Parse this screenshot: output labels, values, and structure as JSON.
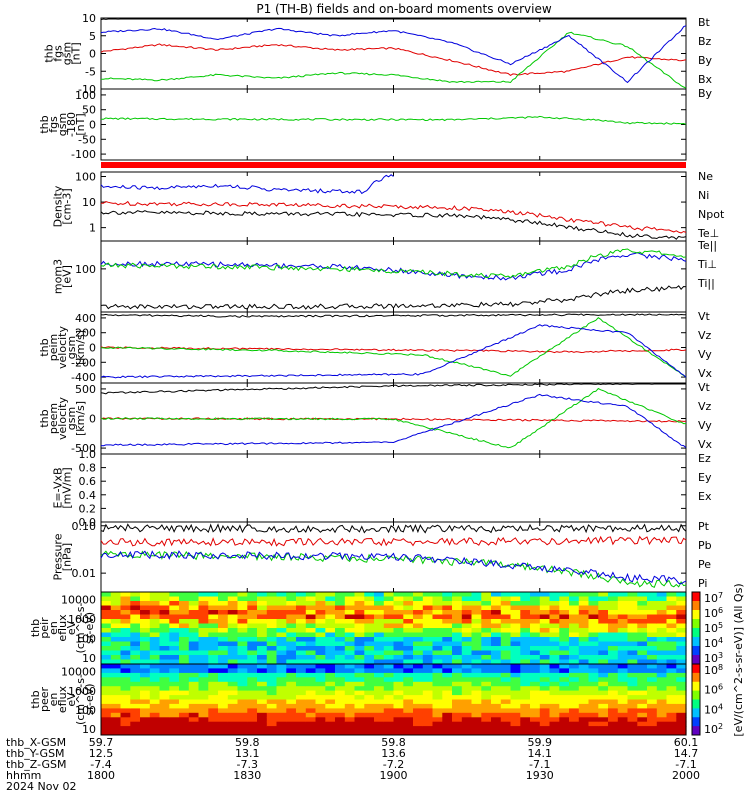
{
  "title": "P1 (TH-B) fields and on-board moments overview",
  "colors": {
    "black": "#000000",
    "red": "#e00000",
    "green": "#00c800",
    "blue": "#0000dd",
    "flagbar": "#ff0000"
  },
  "chart_data": [
    {
      "type": "line",
      "panel": "fgs-gsm",
      "ylabel": [
        "thb",
        "fgs",
        "gsm",
        "[nT]"
      ],
      "ylim": [
        -10,
        10
      ],
      "yticks": [
        "10",
        "5",
        "0",
        "-5",
        "-10"
      ],
      "tick_values": [
        10,
        5,
        0,
        -5,
        -10
      ],
      "series": [
        {
          "name": "Bt",
          "color": "#000000",
          "x": [
            0,
            0.1,
            0.2,
            0.3,
            0.4,
            0.5,
            0.6,
            0.7,
            0.8,
            0.9,
            1
          ],
          "y": [
            9.8,
            10,
            10.2,
            10.4,
            10.3,
            10.5,
            10.4,
            10.6,
            10.7,
            10.9,
            10.8
          ]
        },
        {
          "name": "Bz",
          "color": "#e00000",
          "x": [
            0,
            0.1,
            0.2,
            0.3,
            0.4,
            0.5,
            0.6,
            0.7,
            0.8,
            0.9,
            1
          ],
          "y": [
            0.5,
            2.5,
            1,
            2.5,
            1,
            1.5,
            -2,
            -6,
            -5,
            -1,
            -2
          ]
        },
        {
          "name": "By",
          "color": "#00c800",
          "x": [
            0,
            0.1,
            0.2,
            0.3,
            0.4,
            0.5,
            0.6,
            0.7,
            0.8,
            0.9,
            1
          ],
          "y": [
            -7,
            -7.5,
            -6,
            -7,
            -5.5,
            -6,
            -8,
            -8,
            6,
            2,
            -10
          ]
        },
        {
          "name": "Bx",
          "color": "#0000dd",
          "x": [
            0,
            0.1,
            0.2,
            0.3,
            0.4,
            0.5,
            0.6,
            0.7,
            0.8,
            0.9,
            1
          ],
          "y": [
            6,
            7,
            4,
            7,
            5,
            6.5,
            3,
            -3,
            5,
            -8,
            8
          ]
        }
      ]
    },
    {
      "type": "line",
      "panel": "fgs-gsm-180",
      "ylabel": [
        "thb",
        "fgs",
        "gsm",
        "-180",
        "[nT]"
      ],
      "ylim": [
        -120,
        120
      ],
      "yticks": [
        "100",
        "50",
        "0",
        "-50",
        "-100"
      ],
      "tick_values": [
        100,
        50,
        0,
        -50,
        -100
      ],
      "series": [
        {
          "name": "By",
          "color": "#00c800",
          "x": [
            0,
            0.2,
            0.4,
            0.6,
            0.75,
            0.85,
            0.9,
            1
          ],
          "y": [
            20,
            18,
            17,
            16,
            25,
            15,
            5,
            3
          ]
        }
      ]
    },
    {
      "type": "line",
      "panel": "density",
      "log": true,
      "ylabel": [
        "Density",
        "[cm-3]"
      ],
      "ylim": [
        0.3,
        150
      ],
      "yticks": [
        "100",
        "10",
        "1"
      ],
      "tick_values": [
        100,
        10,
        1
      ],
      "series": [
        {
          "name": "Ne",
          "color": "#e00000",
          "x": [
            0,
            0.3,
            0.6,
            0.7,
            0.8,
            0.9,
            1
          ],
          "y": [
            9,
            8,
            6,
            4,
            2,
            1,
            0.7
          ]
        },
        {
          "name": "Ni",
          "color": "#000000",
          "x": [
            0,
            0.3,
            0.6,
            0.7,
            0.8,
            0.9,
            1
          ],
          "y": [
            4,
            3.5,
            3,
            2,
            1,
            0.5,
            0.4
          ]
        },
        {
          "name": "Npot",
          "color": "#0000dd",
          "x": [
            0,
            0.1,
            0.2,
            0.3,
            0.45,
            0.5
          ],
          "y": [
            40,
            35,
            45,
            30,
            25,
            120
          ]
        },
        {
          "name": "Te⊥",
          "color": "#e00000"
        }
      ]
    },
    {
      "type": "line",
      "panel": "moments",
      "log": true,
      "ylabel": [
        "mom3",
        "[eV]"
      ],
      "ylim": [
        4,
        800
      ],
      "yticks": [
        "100"
      ],
      "tick_values": [
        100
      ],
      "series": [
        {
          "name": "Te||",
          "color": "#000000",
          "x": [
            0,
            0.4,
            0.7,
            0.8,
            0.9,
            1
          ],
          "y": [
            6,
            6,
            7,
            10,
            20,
            25
          ]
        },
        {
          "name": "Ti⊥",
          "color": "#0000dd",
          "x": [
            0,
            0.2,
            0.4,
            0.6,
            0.7,
            0.8,
            0.9,
            1
          ],
          "y": [
            150,
            140,
            120,
            60,
            50,
            90,
            300,
            200
          ]
        },
        {
          "name": "Ti||",
          "color": "#00c800",
          "x": [
            0,
            0.2,
            0.4,
            0.6,
            0.7,
            0.8,
            0.9,
            1
          ],
          "y": [
            130,
            120,
            100,
            70,
            55,
            120,
            400,
            250
          ]
        }
      ]
    },
    {
      "type": "line",
      "panel": "peim-velocity",
      "ylabel": [
        "thb",
        "peim",
        "velocity",
        "gsm",
        "[km/s]"
      ],
      "ylim": [
        -480,
        480
      ],
      "yticks": [
        "400",
        "200",
        "0",
        "-200",
        "-400"
      ],
      "tick_values": [
        400,
        200,
        0,
        -200,
        -400
      ],
      "series": [
        {
          "name": "Vt",
          "color": "#000000",
          "x": [
            0,
            0.25,
            0.5,
            0.75,
            1
          ],
          "y": [
            440,
            420,
            430,
            440,
            450
          ]
        },
        {
          "name": "Vz",
          "color": "#e00000",
          "x": [
            0,
            0.3,
            0.6,
            0.8,
            1
          ],
          "y": [
            0,
            -20,
            -40,
            -60,
            -30
          ]
        },
        {
          "name": "Vy",
          "color": "#00c800",
          "x": [
            0,
            0.3,
            0.55,
            0.7,
            0.85,
            1
          ],
          "y": [
            0,
            -40,
            -100,
            -380,
            400,
            -400
          ]
        },
        {
          "name": "Vx",
          "color": "#0000dd",
          "x": [
            0,
            0.3,
            0.55,
            0.75,
            0.9,
            1
          ],
          "y": [
            -400,
            -380,
            -360,
            300,
            200,
            -400
          ]
        }
      ]
    },
    {
      "type": "line",
      "panel": "peem-velocity",
      "ylabel": [
        "thb",
        "peem",
        "velocity",
        "gsm",
        "[km/s]"
      ],
      "ylim": [
        -600,
        600
      ],
      "yticks": [
        "500",
        "0",
        "-500"
      ],
      "tick_values": [
        500,
        0,
        -500
      ],
      "series": [
        {
          "name": "Vt",
          "color": "#000000",
          "x": [
            0,
            0.5,
            1
          ],
          "y": [
            430,
            550,
            600
          ]
        },
        {
          "name": "Vz",
          "color": "#e00000",
          "x": [
            0,
            0.5,
            1
          ],
          "y": [
            0,
            -10,
            -50
          ]
        },
        {
          "name": "Vy",
          "color": "#00c800",
          "x": [
            0,
            0.5,
            0.7,
            0.85,
            1
          ],
          "y": [
            0,
            -10,
            -500,
            500,
            -100
          ]
        },
        {
          "name": "Vx",
          "color": "#0000dd",
          "x": [
            0,
            0.5,
            0.75,
            0.9,
            1
          ],
          "y": [
            -450,
            -400,
            400,
            200,
            -500
          ]
        }
      ]
    },
    {
      "type": "line",
      "panel": "efield",
      "ylabel": [
        "E=-VxB",
        "[mV/m]"
      ],
      "ylim": [
        0,
        1
      ],
      "yticks": [
        "1.0",
        "0.8",
        "0.6",
        "0.4",
        "0.2",
        "0.0"
      ],
      "tick_values": [
        1,
        0.8,
        0.6,
        0.4,
        0.2,
        0
      ],
      "series": [
        {
          "name": "Ez",
          "color": "#e00000"
        },
        {
          "name": "Ey",
          "color": "#00c800"
        },
        {
          "name": "Ex",
          "color": "#0000dd"
        }
      ]
    },
    {
      "type": "line",
      "panel": "pressure",
      "log": true,
      "ylabel": [
        "Pressure",
        "[nPa]"
      ],
      "ylim": [
        0.004,
        0.12
      ],
      "yticks": [
        "0.10",
        "0.01"
      ],
      "tick_values": [
        0.1,
        0.01
      ],
      "series": [
        {
          "name": "Pt",
          "color": "#000000",
          "x": [
            0,
            0.5,
            1
          ],
          "y": [
            0.09,
            0.085,
            0.09
          ]
        },
        {
          "name": "Pb",
          "color": "#e00000",
          "x": [
            0,
            0.5,
            1
          ],
          "y": [
            0.045,
            0.045,
            0.05
          ]
        },
        {
          "name": "Pe",
          "color": "#00c800",
          "x": [
            0,
            0.5,
            0.7,
            0.9,
            1
          ],
          "y": [
            0.025,
            0.02,
            0.015,
            0.006,
            0.006
          ]
        },
        {
          "name": "Pi",
          "color": "#0000dd",
          "x": [
            0,
            0.5,
            0.7,
            0.9,
            1
          ],
          "y": [
            0.025,
            0.022,
            0.015,
            0.008,
            0.007
          ]
        }
      ]
    },
    {
      "type": "heatmap",
      "panel": "peir-spectrogram",
      "log": true,
      "ylabel": [
        "thb",
        "peir",
        "en",
        "eflux",
        "eV",
        "(cm^2-s-",
        "sr-eV)"
      ],
      "ylim": [
        5,
        25000
      ],
      "yticks": [
        "10000",
        "1000",
        "100",
        "10"
      ],
      "tick_values": [
        10000,
        1000,
        100,
        10
      ]
    },
    {
      "type": "heatmap",
      "panel": "peer-spectrogram",
      "log": true,
      "ylabel": [
        "thb",
        "peer",
        "en",
        "eflux",
        "eV",
        "(cm^2-s-",
        "sr-eV)"
      ],
      "ylim": [
        5,
        25000
      ],
      "yticks": [
        "10000",
        "1000",
        "100",
        "10"
      ],
      "tick_values": [
        10000,
        1000,
        100,
        10
      ]
    }
  ],
  "colorbar": {
    "upper_ticks": [
      "10^7",
      "10^6",
      "10^5",
      "10^4",
      "10^3"
    ],
    "lower_ticks": [
      "10^8",
      "10^6",
      "10^4",
      "10^2"
    ],
    "label": "[eV/(cm^2-s-sr-eV)] (All Qs)"
  },
  "x_axis": {
    "row_labels": [
      "thb_X-GSM",
      "thb_Y-GSM",
      "thb_Z-GSM",
      "hhmm",
      "2024 Nov 02"
    ],
    "ticks": [
      {
        "x": "59.7",
        "y": "12.5",
        "z": "-7.4",
        "t": "1800"
      },
      {
        "x": "59.8",
        "y": "13.1",
        "z": "-7.3",
        "t": "1830"
      },
      {
        "x": "59.8",
        "y": "13.6",
        "z": "-7.2",
        "t": "1900"
      },
      {
        "x": "59.9",
        "y": "14.1",
        "z": "-7.1",
        "t": "1930"
      },
      {
        "x": "60.1",
        "y": "14.7",
        "z": "-7.1",
        "t": "2000"
      }
    ]
  }
}
